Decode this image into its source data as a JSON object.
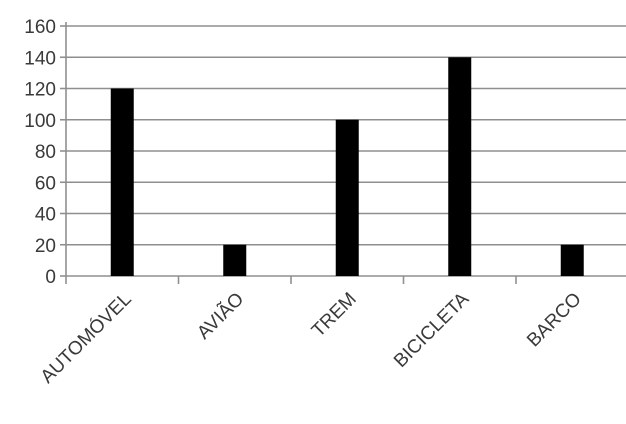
{
  "chart_data": {
    "type": "bar",
    "title": "",
    "xlabel": "",
    "ylabel": "",
    "categories": [
      "AUTOMÓVEL",
      "AVIÃO",
      "TREM",
      "BICICLETA",
      "BARCO"
    ],
    "values": [
      120,
      20,
      100,
      140,
      20
    ],
    "ylim": [
      0,
      160
    ],
    "yticks": [
      "0",
      "20",
      "40",
      "60",
      "80",
      "100",
      "120",
      "140",
      "160"
    ],
    "grid": true,
    "legend": "none",
    "bar_color": "#000000"
  }
}
